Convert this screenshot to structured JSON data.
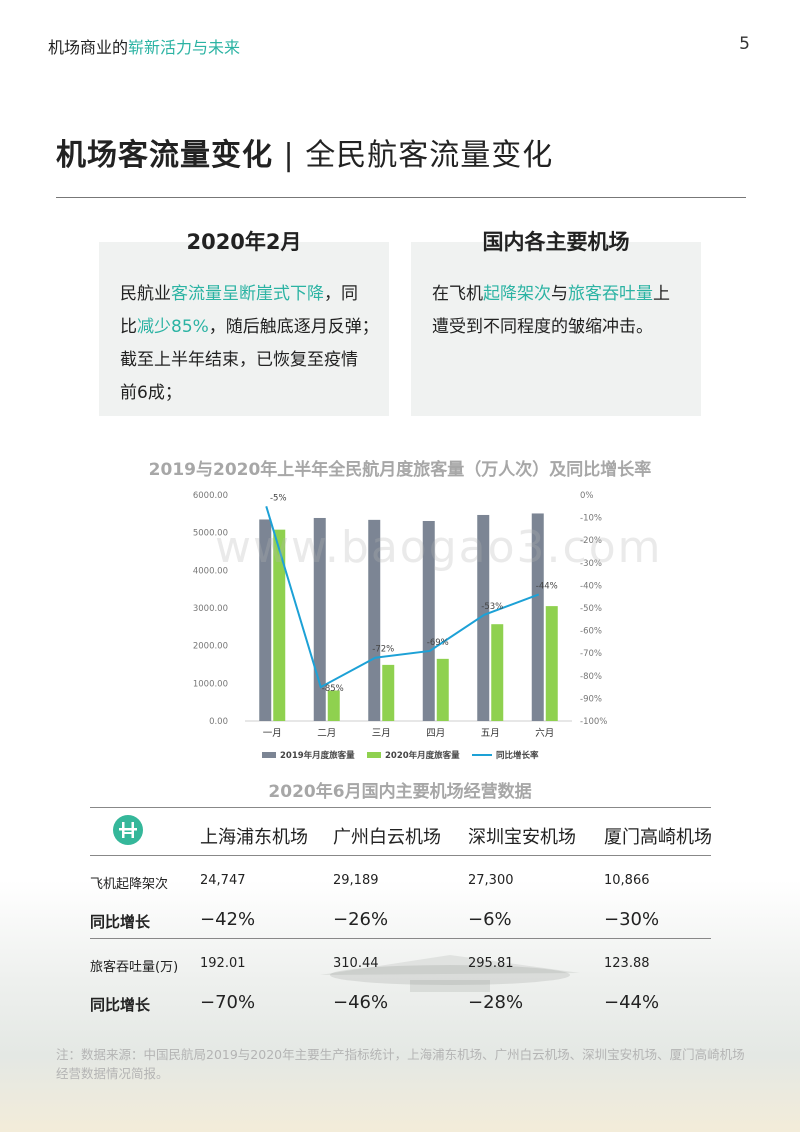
{
  "header": {
    "prefix": "机场商业的",
    "highlight": "崭新活力与未来",
    "page_number": "5"
  },
  "title": {
    "bold": "机场客流量变化",
    "separator": "|",
    "rest": "全民航客流量变化"
  },
  "box_left": {
    "heading": "2020年2月",
    "lines": [
      {
        "a": "民航业",
        "b": "客流量呈断崖式下降",
        "c": "，同"
      },
      {
        "a": "比",
        "b": "减少85%",
        "c": "，随后触底逐月反弹；"
      },
      {
        "a": "截至上半年结束，已恢复至疫情",
        "b": "",
        "c": ""
      },
      {
        "a": "前6成；",
        "b": "",
        "c": ""
      }
    ]
  },
  "box_right": {
    "heading": "国内各主要机场",
    "lines": [
      {
        "a": "在飞机",
        "b": "起降架次",
        "c": "与",
        "d": "旅客吞吐量",
        "e": "上"
      },
      {
        "a": "遭受到不同程度的皱缩冲击。",
        "b": "",
        "c": "",
        "d": "",
        "e": ""
      }
    ]
  },
  "watermark": "www.baogao3.com",
  "chart_data": {
    "type": "bar",
    "title": "2019与2020年上半年全民航月度旅客量（万人次）及同比增长率",
    "categories": [
      "一月",
      "二月",
      "三月",
      "四月",
      "五月",
      "六月"
    ],
    "series": [
      {
        "name": "2019年月度旅客量",
        "type": "bar",
        "axis": "left",
        "color": "#7c8594",
        "values": [
          5350,
          5390,
          5340,
          5310,
          5470,
          5510
        ]
      },
      {
        "name": "2020年月度旅客量",
        "type": "bar",
        "axis": "left",
        "color": "#8fd14f",
        "values": [
          5080,
          810,
          1490,
          1650,
          2570,
          3050
        ]
      },
      {
        "name": "同比增长率",
        "type": "line",
        "axis": "right",
        "color": "#1da1d6",
        "values": [
          -5,
          -85,
          -72,
          -69,
          -53,
          -44
        ]
      }
    ],
    "point_labels": [
      "-5%",
      "-85%",
      "-72%",
      "-69%",
      "-53%",
      "-44%"
    ],
    "y_left": {
      "min": 0,
      "max": 6000,
      "ticks": [
        "0.00",
        "1000.00",
        "2000.00",
        "3000.00",
        "4000.00",
        "5000.00",
        "6000.00"
      ]
    },
    "y_right": {
      "min": -100,
      "max": 0,
      "ticks": [
        "-100%",
        "-90%",
        "-80%",
        "-70%",
        "-60%",
        "-50%",
        "-40%",
        "-30%",
        "-20%",
        "-10%",
        "0%"
      ]
    },
    "legend_position": "bottom",
    "grid": false
  },
  "table": {
    "title": "2020年6月国内主要机场经营数据",
    "airports": [
      "上海浦东机场",
      "广州白云机场",
      "深圳宝安机场",
      "厦门高崎机场"
    ],
    "rows": [
      {
        "label": "飞机起降架次",
        "style": "small",
        "values": [
          "24,747",
          "29,189",
          "27,300",
          "10,866"
        ]
      },
      {
        "label": "同比增长",
        "style": "bold",
        "values": [
          "−42%",
          "−26%",
          "−6%",
          "−30%"
        ]
      },
      {
        "label": "旅客吞吐量(万)",
        "style": "small",
        "values": [
          "192.01",
          "310.44",
          "295.81",
          "123.88"
        ]
      },
      {
        "label": "同比增长",
        "style": "bold",
        "values": [
          "−70%",
          "−46%",
          "−28%",
          "−44%"
        ]
      }
    ],
    "logo_icon": "airport-logo-icon"
  },
  "note": "注：数据来源：中国民航局2019与2020年主要生产指标统计，上海浦东机场、广州白云机场、深圳宝安机场、厦门高崎机场经营数据情况简报。"
}
